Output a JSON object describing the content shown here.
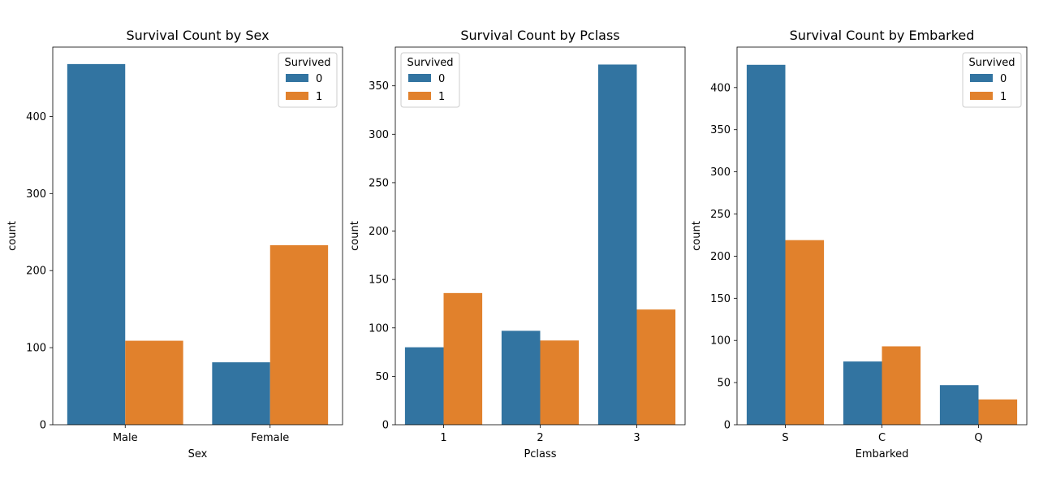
{
  "colors": {
    "survived_0": "#3274a1",
    "survived_1": "#e1812c"
  },
  "chart_data": [
    {
      "type": "bar",
      "title": "Survival Count by Sex",
      "xlabel": "Sex",
      "ylabel": "count",
      "categories": [
        "Male",
        "Female"
      ],
      "series": [
        {
          "name": "0",
          "values": [
            468,
            81
          ]
        },
        {
          "name": "1",
          "values": [
            109,
            233
          ]
        }
      ],
      "ylim": [
        0,
        490
      ],
      "yticks": [
        0,
        100,
        200,
        300,
        400
      ],
      "legend": {
        "title": "Survived",
        "placement": "top-right"
      },
      "grid": false
    },
    {
      "type": "bar",
      "title": "Survival Count by Pclass",
      "xlabel": "Pclass",
      "ylabel": "count",
      "categories": [
        "1",
        "2",
        "3"
      ],
      "series": [
        {
          "name": "0",
          "values": [
            80,
            97,
            372
          ]
        },
        {
          "name": "1",
          "values": [
            136,
            87,
            119
          ]
        }
      ],
      "ylim": [
        0,
        390
      ],
      "yticks": [
        0,
        50,
        100,
        150,
        200,
        250,
        300,
        350
      ],
      "legend": {
        "title": "Survived",
        "placement": "top-left"
      },
      "grid": false
    },
    {
      "type": "bar",
      "title": "Survival Count by Embarked",
      "xlabel": "Embarked",
      "ylabel": "count",
      "categories": [
        "S",
        "C",
        "Q"
      ],
      "series": [
        {
          "name": "0",
          "values": [
            427,
            75,
            47
          ]
        },
        {
          "name": "1",
          "values": [
            219,
            93,
            30
          ]
        }
      ],
      "ylim": [
        0,
        448
      ],
      "yticks": [
        0,
        50,
        100,
        150,
        200,
        250,
        300,
        350,
        400
      ],
      "legend": {
        "title": "Survived",
        "placement": "top-right"
      },
      "grid": false
    }
  ]
}
